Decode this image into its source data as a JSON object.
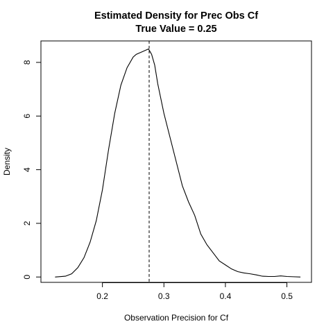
{
  "chart_data": {
    "type": "line",
    "title": "Estimated Density for Prec Obs Cf",
    "subtitle": "True Value = 0.25",
    "xlabel": "Observation Precision for Cf",
    "ylabel": "Density",
    "xlim": [
      0.1,
      0.54
    ],
    "ylim": [
      -0.2,
      8.8
    ],
    "x_ticks": [
      0.2,
      0.3,
      0.4,
      0.5
    ],
    "y_ticks": [
      0,
      2,
      4,
      6,
      8
    ],
    "x_tick_labels": [
      "0.2",
      "0.3",
      "0.4",
      "0.5"
    ],
    "y_tick_labels": [
      "0",
      "2",
      "4",
      "6",
      "8"
    ],
    "grid": false,
    "reference_line": {
      "x": 0.276,
      "style": "dashed"
    },
    "series": [
      {
        "x": [
          0.123,
          0.14,
          0.15,
          0.16,
          0.17,
          0.18,
          0.19,
          0.2,
          0.21,
          0.22,
          0.23,
          0.24,
          0.25,
          0.255,
          0.26,
          0.265,
          0.27,
          0.275,
          0.28,
          0.285,
          0.29,
          0.3,
          0.31,
          0.32,
          0.33,
          0.34,
          0.35,
          0.36,
          0.37,
          0.38,
          0.39,
          0.4,
          0.41,
          0.42,
          0.43,
          0.44,
          0.45,
          0.46,
          0.47,
          0.48,
          0.49,
          0.5,
          0.51,
          0.522
        ],
        "y": [
          0.0,
          0.03,
          0.12,
          0.35,
          0.72,
          1.3,
          2.1,
          3.25,
          4.75,
          6.1,
          7.15,
          7.8,
          8.2,
          8.3,
          8.35,
          8.4,
          8.45,
          8.5,
          8.3,
          7.9,
          7.2,
          6.1,
          5.2,
          4.3,
          3.4,
          2.8,
          2.3,
          1.6,
          1.2,
          0.9,
          0.6,
          0.45,
          0.3,
          0.2,
          0.15,
          0.12,
          0.08,
          0.03,
          0.02,
          0.02,
          0.04,
          0.02,
          0.01,
          0.0
        ]
      }
    ]
  }
}
